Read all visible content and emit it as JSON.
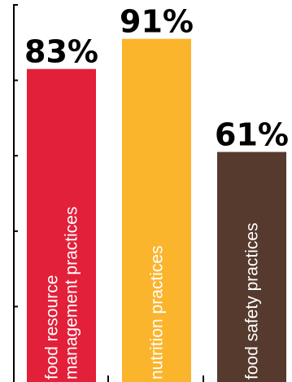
{
  "chart_data": {
    "type": "bar",
    "categories": [
      "food resource management practices",
      "nutrition practices",
      "food safety practices"
    ],
    "category_lines": [
      [
        "food resource",
        "management practices"
      ],
      [
        "nutrition practices"
      ],
      [
        "food safety practices"
      ]
    ],
    "values": [
      83,
      91,
      61
    ],
    "value_labels": [
      "83%",
      "91%",
      "61%"
    ],
    "colors": [
      "#e2203a",
      "#fbb52c",
      "#563a2d"
    ],
    "title": "",
    "xlabel": "",
    "ylabel": "",
    "ylim": [
      0,
      100
    ],
    "grid": false,
    "legend": "none"
  }
}
